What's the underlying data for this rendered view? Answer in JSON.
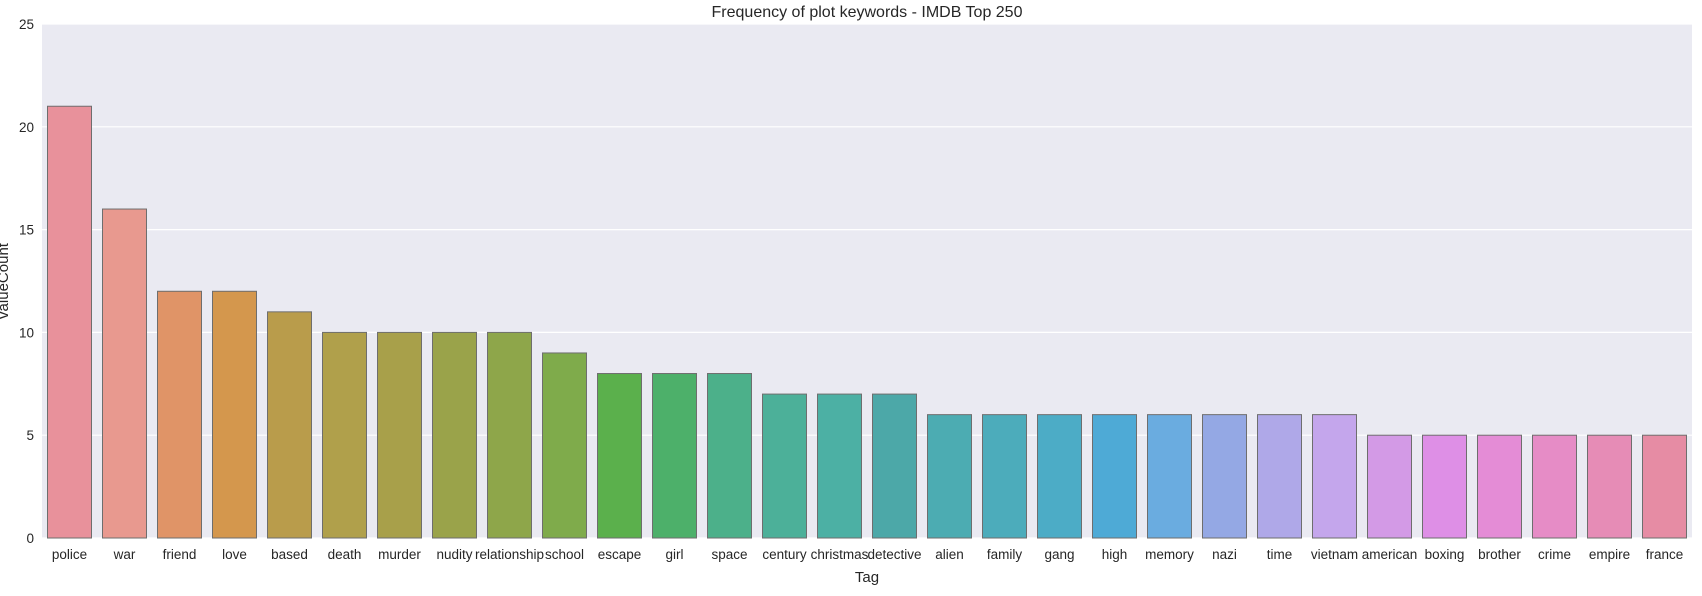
{
  "chart_data": {
    "type": "bar",
    "title": "Frequency of plot keywords - IMDB Top 250",
    "xlabel": "Tag",
    "ylabel": "valueCount",
    "ylim": [
      0,
      25
    ],
    "yticks": [
      "0",
      "5",
      "10",
      "15",
      "20",
      "25"
    ],
    "grid": true,
    "background": "#eaeaf2",
    "categories": [
      "police",
      "war",
      "friend",
      "love",
      "based",
      "death",
      "murder",
      "nudity",
      "relationship",
      "school",
      "escape",
      "girl",
      "space",
      "century",
      "christmas",
      "detective",
      "alien",
      "family",
      "gang",
      "high",
      "memory",
      "nazi",
      "time",
      "vietnam",
      "american",
      "boxing",
      "brother",
      "crime",
      "empire",
      "france"
    ],
    "values": [
      21,
      16,
      12,
      12,
      11,
      10,
      10,
      10,
      10,
      9,
      8,
      8,
      8,
      7,
      7,
      7,
      6,
      6,
      6,
      6,
      6,
      6,
      6,
      6,
      5,
      5,
      5,
      5,
      5,
      5
    ],
    "colors": [
      "#e8919b",
      "#e8998f",
      "#e09467",
      "#d4974d",
      "#b99c4b",
      "#b0a04b",
      "#a8a04a",
      "#9aa34a",
      "#8ea64a",
      "#7fab4b",
      "#5bb04c",
      "#4db06a",
      "#4cb08a",
      "#4cb099",
      "#4cb0a4",
      "#4ca8a8",
      "#4cacb2",
      "#4cacbb",
      "#4cacc6",
      "#4eaad6",
      "#6aace0",
      "#94a8e4",
      "#afa8e8",
      "#c4a6ec",
      "#d39ae6",
      "#de8fe6",
      "#e48cd6",
      "#e68cc6",
      "#e68cb6",
      "#e68ca4"
    ]
  }
}
